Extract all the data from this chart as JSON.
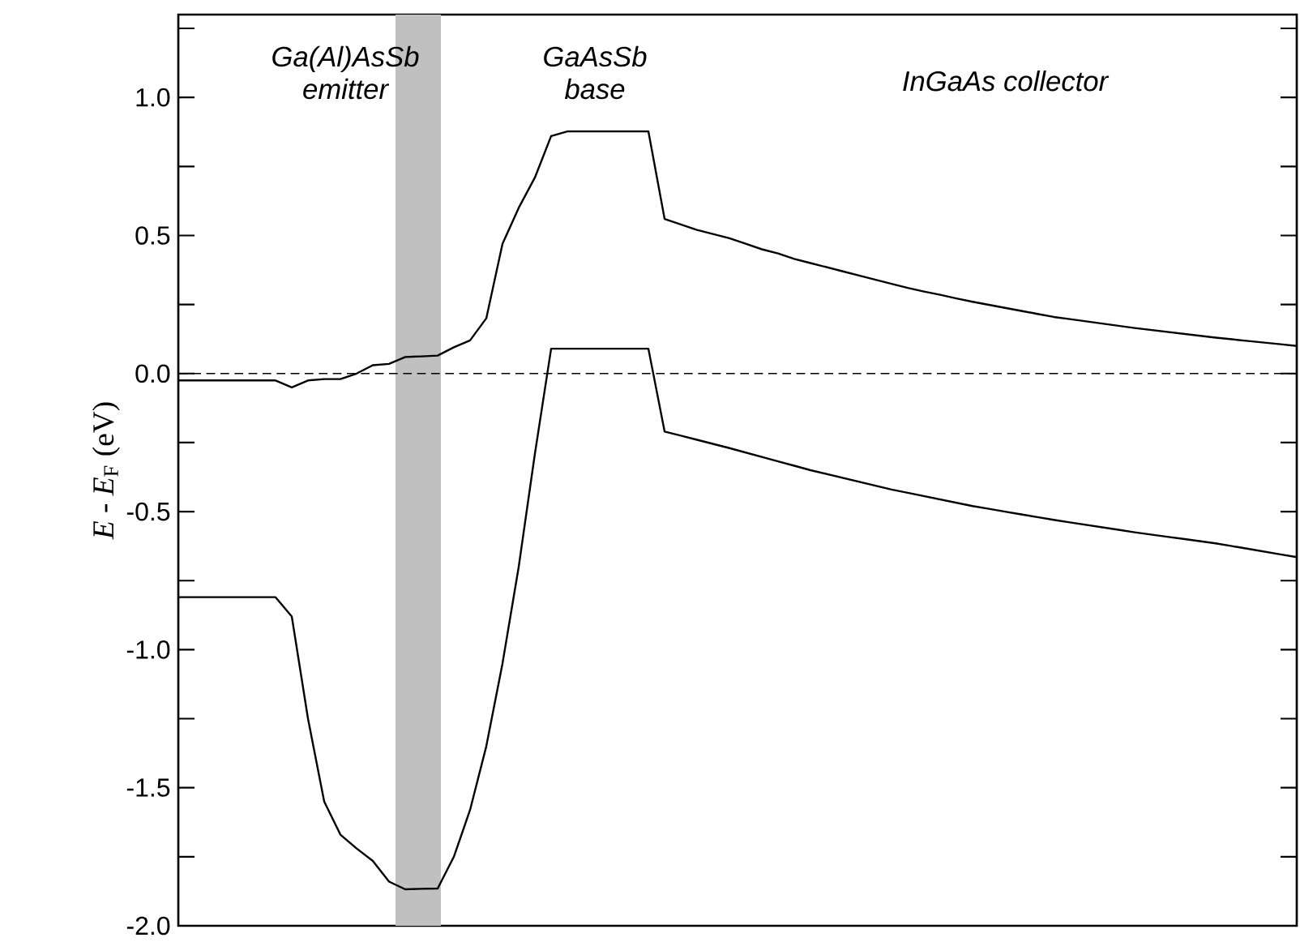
{
  "chart_data": {
    "type": "line",
    "ylabel": "*E* - *E*$_{F}$ (eV)",
    "annotations": [
      "Ga(Al)AsSb emitter",
      "GaAsSb base",
      "InGaAs collector"
    ],
    "categories": [
      null,
      null,
      null,
      null,
      null,
      null,
      null,
      null,
      null,
      null,
      null,
      null,
      null,
      null,
      null,
      null,
      null,
      null,
      null,
      null,
      null,
      null,
      null,
      null,
      null,
      null,
      null,
      null,
      null,
      null,
      null,
      null,
      null,
      null,
      null,
      null,
      null,
      null,
      null,
      null,
      null,
      null,
      null,
      null,
      null,
      null,
      null,
      null,
      null,
      null,
      null,
      null,
      null,
      null,
      null,
      null,
      null,
      null,
      null,
      null,
      null,
      null,
      null,
      null,
      null,
      null,
      null,
      null,
      null,
      null
    ],
    "ylim": [
      -2.0,
      1.3
    ],
    "yticks": [
      {
        "value": -2.0,
        "label": "-2.0"
      },
      {
        "value": -1.75,
        "label": null
      },
      {
        "value": -1.5,
        "label": "-1.5"
      },
      {
        "value": -1.25,
        "label": null
      },
      {
        "value": -1.0,
        "label": "-1.0"
      },
      {
        "value": -0.75,
        "label": null
      },
      {
        "value": -0.5,
        "label": "-0.5"
      },
      {
        "value": -0.25,
        "label": null
      },
      {
        "value": 0.0,
        "label": "0.0"
      },
      {
        "value": 0.25,
        "label": null
      },
      {
        "value": 0.5,
        "label": "0.5"
      },
      {
        "value": 0.75,
        "label": null
      },
      {
        "value": 1.0,
        "label": "1.0"
      },
      {
        "value": 1.25,
        "label": null
      }
    ],
    "tick_labels": "y",
    "series": [
      {
        "color": "#000000",
        "values": [
          -0.025,
          -0.025,
          -0.025,
          -0.025,
          -0.025,
          -0.025,
          -0.025,
          -0.05,
          -0.025,
          -0.02,
          -0.02,
          0.0,
          0.03,
          0.035,
          0.06,
          0.062,
          0.065,
          0.095,
          0.12,
          0.2,
          0.47,
          0.6,
          0.71,
          0.86,
          0.877,
          0.877,
          0.877,
          0.877,
          0.877,
          0.877,
          0.56,
          0.54,
          0.52,
          0.505,
          0.49,
          0.47,
          0.45,
          0.435,
          0.415,
          0.4,
          0.385,
          0.37,
          0.355,
          0.34,
          0.325,
          0.31,
          0.297,
          0.285,
          0.272,
          0.26,
          0.249,
          0.238,
          0.227,
          0.216,
          0.205,
          0.197,
          0.189,
          0.181,
          0.173,
          0.165,
          0.158,
          0.151,
          0.144,
          0.137,
          0.13,
          0.124,
          0.118,
          0.112,
          0.106,
          0.1
        ]
      },
      {
        "color": "#000000",
        "values": [
          -0.81,
          -0.81,
          -0.81,
          -0.81,
          -0.81,
          -0.81,
          -0.81,
          -0.88,
          -1.25,
          -1.55,
          -1.67,
          -1.72,
          -1.765,
          -1.84,
          -1.868,
          -1.866,
          -1.865,
          -1.75,
          -1.58,
          -1.35,
          -1.05,
          -0.7,
          -0.29,
          0.09,
          0.09,
          0.09,
          0.09,
          0.09,
          0.09,
          0.09,
          -0.21,
          -0.225,
          -0.24,
          -0.255,
          -0.27,
          -0.286,
          -0.302,
          -0.318,
          -0.334,
          -0.35,
          -0.364,
          -0.378,
          -0.392,
          -0.406,
          -0.42,
          -0.432,
          -0.444,
          -0.456,
          -0.468,
          -0.48,
          -0.49,
          -0.5,
          -0.51,
          -0.52,
          -0.53,
          -0.539,
          -0.548,
          -0.557,
          -0.566,
          -0.575,
          -0.583,
          -0.591,
          -0.599,
          -0.607,
          -0.615,
          -0.625,
          -0.635,
          -0.645,
          -0.655,
          -0.665
        ]
      }
    ],
    "ref_lines": [
      {
        "axis": "y",
        "value": 0.0,
        "color": "#000000",
        "line_style": "dashed"
      }
    ]
  }
}
